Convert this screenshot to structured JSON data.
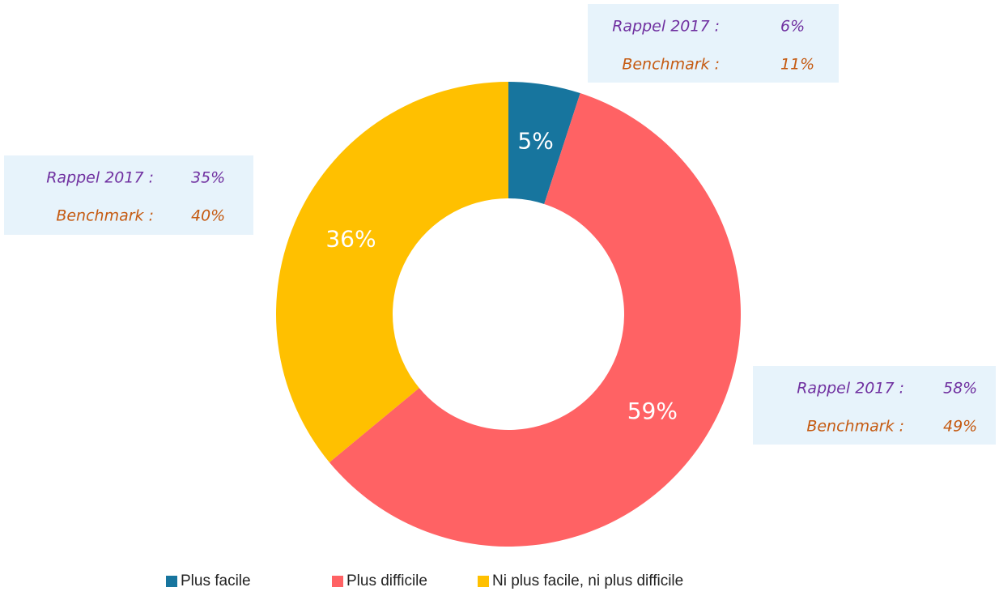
{
  "chart_data": {
    "type": "pie",
    "donut": true,
    "categories": [
      "Plus facile",
      "Plus difficile",
      "Ni plus facile, ni plus difficile"
    ],
    "values": [
      5,
      59,
      36
    ],
    "value_labels": [
      "5%",
      "59%",
      "36%"
    ],
    "colors": [
      "#17759e",
      "#ff6264",
      "#ffc000"
    ],
    "annotations": [
      {
        "lines": [
          [
            "Rappel 2017 :",
            "6%"
          ],
          [
            "Benchmark :",
            "11%"
          ]
        ]
      },
      {
        "lines": [
          [
            "Rappel 2017 :",
            "35%"
          ],
          [
            "Benchmark :",
            "40%"
          ]
        ]
      },
      {
        "lines": [
          [
            "Rappel 2017 :",
            "58%"
          ],
          [
            "Benchmark :",
            "49%"
          ]
        ]
      }
    ],
    "annotation_colors": [
      "#7030a0",
      "#c55a11"
    ],
    "legend": "bottom"
  }
}
